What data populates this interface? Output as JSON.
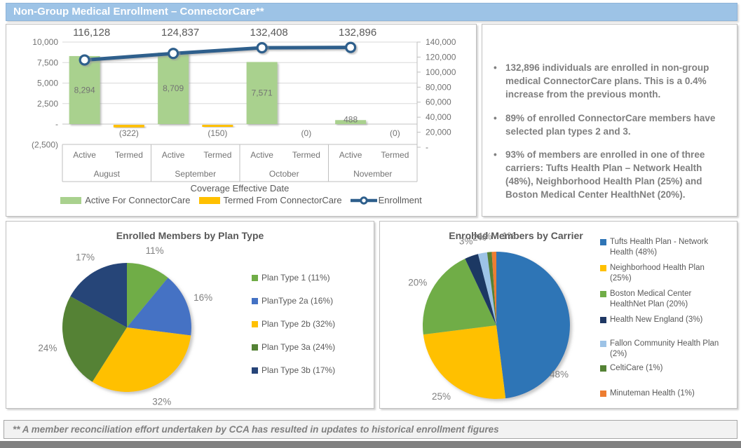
{
  "title_bar": {
    "title": "Non-Group Medical Enrollment – ConnectorCare**"
  },
  "insights": {
    "bullet_char": "•",
    "bullets": [
      "132,896 individuals are enrolled in non-group medical ConnectorCare plans. This is a 0.4% increase from the previous month.",
      "89% of enrolled ConnectorCare members have selected plan types 2 and 3.",
      "93% of members are enrolled in one of three carriers: Tufts Health Plan – Network Health (48%), Neighborhood Health Plan (25%) and Boston Medical Center HealthNet (20%)."
    ]
  },
  "footnote": "** A member reconciliation effort undertaken by CCA has resulted in updates to historical enrollment figures",
  "colors": {
    "title_bar_bg": "#9DC3E6",
    "active_bar": "#A9D18E",
    "termed_bar": "#FFC000",
    "enrollment_line": "#2E5F8C",
    "axis_text": "#737373",
    "label_text": "#595959",
    "pie_label_text": "#808080",
    "gridline": "#D9D9D9",
    "table_line": "#BFBFBF",
    "bottom_bar": "#808080"
  },
  "chart_data": [
    {
      "type": "bar",
      "subtype": "bar-line-combo",
      "title": "",
      "xlabel": "Coverage Effective Date",
      "months": [
        "August",
        "September",
        "October",
        "November"
      ],
      "sub_categories": [
        "Active",
        "Termed"
      ],
      "series": [
        {
          "name": "Active For ConnectorCare",
          "type": "bar",
          "axis": "left",
          "color": "#A9D18E",
          "values": [
            8294,
            8709,
            7571,
            488
          ],
          "labels": [
            "8,294",
            "8,709",
            "7,571",
            "488"
          ]
        },
        {
          "name": "Termed From ConnectorCare",
          "type": "bar",
          "axis": "left",
          "color": "#FFC000",
          "values": [
            -322,
            -150,
            0,
            0
          ],
          "labels": [
            "(322)",
            "(150)",
            "(0)",
            "(0)"
          ]
        },
        {
          "name": "Enrollment",
          "type": "line",
          "axis": "right",
          "color": "#2E5F8C",
          "values": [
            116128,
            124837,
            132408,
            132896
          ],
          "labels": [
            "116,128",
            "124,837",
            "132,408",
            "132,896"
          ]
        }
      ],
      "left_axis": {
        "min": -2500,
        "max": 10000,
        "step": 2500,
        "ticks": [
          "10,000",
          "7,500",
          "5,000",
          "2,500",
          "-",
          "(2,500)"
        ]
      },
      "right_axis": {
        "min": 0,
        "max": 140000,
        "step": 20000,
        "ticks": [
          "140,000",
          "120,000",
          "100,000",
          "80,000",
          "60,000",
          "40,000",
          "20,000",
          "-"
        ]
      },
      "legend_position": "bottom",
      "grid": "horizontal"
    },
    {
      "type": "pie",
      "title": "Enrolled Members by Plan Type",
      "legend_position": "right",
      "slices": [
        {
          "label": "Plan Type 1 (11%)",
          "pct": 11,
          "pct_label": "11%",
          "color": "#70AD47"
        },
        {
          "label": "PlanType 2a (16%)",
          "pct": 16,
          "pct_label": "16%",
          "color": "#4472C4"
        },
        {
          "label": "Plan Type 2b (32%)",
          "pct": 32,
          "pct_label": "32%",
          "color": "#FFC000"
        },
        {
          "label": "Plan Type 3a (24%)",
          "pct": 24,
          "pct_label": "24%",
          "color": "#548235"
        },
        {
          "label": "Plan Type 3b (17%)",
          "pct": 17,
          "pct_label": "17%",
          "color": "#264478"
        }
      ]
    },
    {
      "type": "pie",
      "title": "Enrolled Members by Carrier",
      "legend_position": "right",
      "slices": [
        {
          "label": "Tufts Health Plan - Network Health (48%)",
          "pct": 48,
          "pct_label": "48%",
          "color": "#2E75B6"
        },
        {
          "label": "Neighborhood Health Plan (25%)",
          "pct": 25,
          "pct_label": "25%",
          "color": "#FFC000"
        },
        {
          "label": "Boston Medical Center HealthNet Plan (20%)",
          "pct": 20,
          "pct_label": "20%",
          "color": "#70AD47"
        },
        {
          "label": "Health New England (3%)",
          "pct": 3,
          "pct_label": "3%",
          "color": "#1F3864"
        },
        {
          "label": "Fallon Community Health Plan (2%)",
          "pct": 2,
          "pct_label": "2%",
          "color": "#9DC3E6"
        },
        {
          "label": "CeltiCare (1%)",
          "pct": 1,
          "pct_label": "1%",
          "color": "#548235"
        },
        {
          "label": "Minuteman Health (1%)",
          "pct": 1,
          "pct_label": "1%",
          "color": "#ED7D31"
        }
      ]
    }
  ]
}
